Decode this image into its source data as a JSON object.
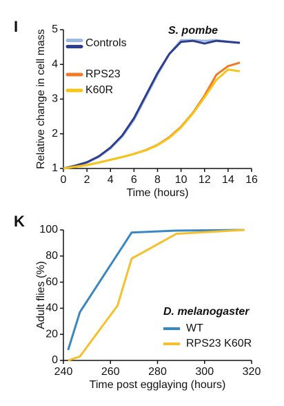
{
  "chart_data": [
    {
      "type": "line",
      "panel": "I",
      "title": "S. pombe",
      "xlabel": "Time (hours)",
      "ylabel": "Relative change in cell mass",
      "xlim": [
        0,
        16
      ],
      "xticks": [
        0,
        2,
        4,
        6,
        8,
        10,
        12,
        14,
        16
      ],
      "ylim": [
        1,
        5
      ],
      "yticks": [
        1,
        2,
        3,
        4,
        5
      ],
      "x": [
        0,
        1,
        2,
        3,
        4,
        5,
        6,
        7,
        8,
        9,
        10,
        11,
        12,
        13,
        14,
        15
      ],
      "series": [
        {
          "color": "#9bb8e2",
          "values": [
            1,
            1.07,
            1.17,
            1.33,
            1.58,
            1.92,
            2.4,
            3.05,
            3.7,
            4.3,
            4.7,
            4.7,
            4.68,
            4.7,
            4.66,
            4.63
          ]
        },
        {
          "color": "#2d3e8f",
          "values": [
            1,
            1.08,
            1.18,
            1.35,
            1.6,
            1.95,
            2.45,
            3.1,
            3.75,
            4.3,
            4.65,
            4.68,
            4.6,
            4.68,
            4.65,
            4.62
          ]
        },
        {
          "color": "#f07a26",
          "values": [
            1,
            1.05,
            1.1,
            1.17,
            1.25,
            1.33,
            1.42,
            1.53,
            1.68,
            1.9,
            2.2,
            2.6,
            3.1,
            3.7,
            3.95,
            4.05
          ]
        },
        {
          "color": "#f5c518",
          "values": [
            1,
            1.05,
            1.1,
            1.17,
            1.25,
            1.33,
            1.42,
            1.52,
            1.67,
            1.88,
            2.18,
            2.58,
            3.05,
            3.55,
            3.85,
            3.8
          ]
        }
      ],
      "legend": [
        {
          "label": "Controls",
          "colors": [
            "#9bb8e2",
            "#2d3e8f"
          ]
        },
        {
          "label": "RPS23",
          "colors": [
            "#f07a26"
          ]
        },
        {
          "label": "K60R",
          "colors": [
            "#f5c518"
          ]
        }
      ]
    },
    {
      "type": "line",
      "panel": "K",
      "title": "D. melanogaster",
      "xlabel": "Time post egglaying (hours)",
      "ylabel": "Adult flies (%)",
      "xlim": [
        240,
        320
      ],
      "xticks": [
        240,
        260,
        280,
        300,
        320
      ],
      "ylim": [
        0,
        100
      ],
      "yticks": [
        0,
        20,
        40,
        60,
        80,
        100
      ],
      "series": [
        {
          "name": "WT",
          "color": "#3a86c0",
          "x": [
            242,
            247,
            269,
            288,
            317
          ],
          "values": [
            8,
            37,
            98,
            99.5,
            100
          ]
        },
        {
          "name": "RPS23 K60R",
          "color": "#f6c02c",
          "x": [
            242,
            247,
            263,
            269,
            288,
            317
          ],
          "values": [
            0,
            3,
            42,
            78,
            97,
            100
          ]
        }
      ]
    }
  ]
}
